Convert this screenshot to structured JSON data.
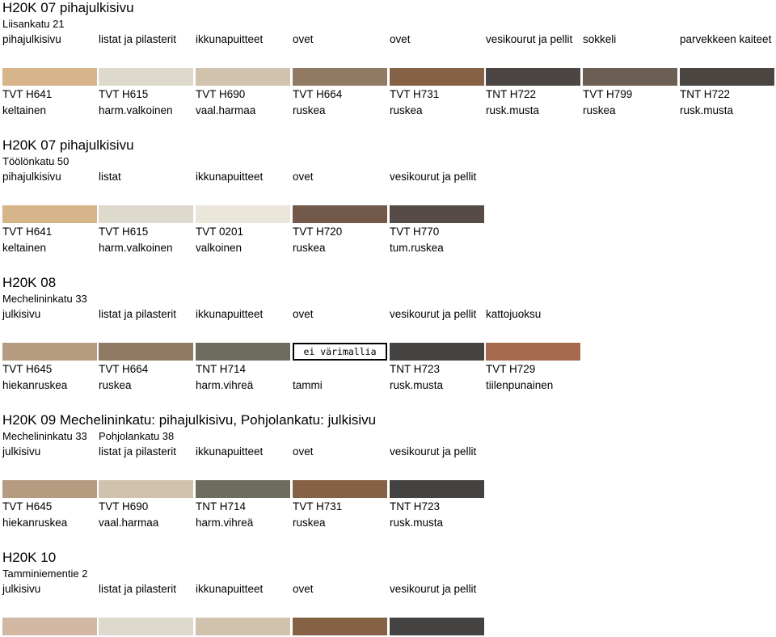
{
  "sections": [
    {
      "title": "H20K 07 pihajulkisivu",
      "street": "Liisankatu 21",
      "parts": [
        "pihajulkisivu",
        "listat ja pilasterit",
        "ikkunapuitteet",
        "ovet",
        "ovet",
        "vesikourut ja pellit",
        "sokkeli",
        "parvekkeen kaiteet"
      ],
      "swatches": [
        {
          "color": "#D6B58B",
          "code": "TVT H641",
          "name": "keltainen"
        },
        {
          "color": "#DDD9CD",
          "code": "TVT H615",
          "name": "harm.valkoinen"
        },
        {
          "color": "#D0C2AD",
          "code": "TVT H690",
          "name": "vaal.harmaa"
        },
        {
          "color": "#917A63",
          "code": "TVT H664",
          "name": "ruskea"
        },
        {
          "color": "#856246",
          "code": "TVT H731",
          "name": "ruskea"
        },
        {
          "color": "#4B4643",
          "code": "TNT H722",
          "name": "rusk.musta"
        },
        {
          "color": "#6B5E53",
          "code": "TVT H799",
          "name": "ruskea"
        },
        {
          "color": "#4A4541",
          "code": "TNT H722",
          "name": "rusk.musta"
        }
      ]
    },
    {
      "title": "H20K 07 pihajulkisivu",
      "street": "Töölönkatu 50",
      "parts": [
        "pihajulkisivu",
        "listat",
        "ikkunapuitteet",
        "ovet",
        "vesikourut ja pellit"
      ],
      "swatches": [
        {
          "color": "#D6B58B",
          "code": "TVT H641",
          "name": "keltainen"
        },
        {
          "color": "#DDD9CD",
          "code": "TVT H615",
          "name": "harm.valkoinen"
        },
        {
          "color": "#EAE6DA",
          "code": "TVT 0201",
          "name": "valkoinen"
        },
        {
          "color": "#72594A",
          "code": "TVT H720",
          "name": "ruskea"
        },
        {
          "color": "#564B46",
          "code": "TVT H770",
          "name": "tum.ruskea"
        }
      ]
    },
    {
      "title": "H20K 08",
      "street": "Mechelininkatu 33",
      "parts": [
        "julkisivu",
        "listat ja pilasterit",
        "ikkunapuitteet",
        "ovet",
        "vesikourut ja pellit",
        "kattojuoksu"
      ],
      "swatches": [
        {
          "color": "#B59B80",
          "code": "TVT H645",
          "name": "hiekanruskea"
        },
        {
          "color": "#917A63",
          "code": "TVT H664",
          "name": "ruskea"
        },
        {
          "color": "#6D6C5E",
          "code": "TNT H714",
          "name": "harm.vihreä"
        },
        {
          "color": "#FFFFFF",
          "code": "",
          "name": "tammi",
          "label": "ei värimallia"
        },
        {
          "color": "#454341",
          "code": "TNT H723",
          "name": "rusk.musta"
        },
        {
          "color": "#A66A4F",
          "code": "TVT H729",
          "name": "tiilenpunainen"
        }
      ]
    },
    {
      "title": "H20K 09 Mechelininkatu: pihajulkisivu, Pohjolankatu: julkisivu",
      "street": "Mechelininkatu 33",
      "street2": "Pohjolankatu 38",
      "parts": [
        "julkisivu",
        "listat ja pilasterit",
        "ikkunapuitteet",
        "ovet",
        "vesikourut ja pellit"
      ],
      "swatches": [
        {
          "color": "#B59B80",
          "code": "TVT H645",
          "name": "hiekanruskea"
        },
        {
          "color": "#D0C2AD",
          "code": "TVT H690",
          "name": "vaal.harmaa"
        },
        {
          "color": "#6D6C5E",
          "code": "TNT H714",
          "name": "harm.vihreä"
        },
        {
          "color": "#856246",
          "code": "TVT H731",
          "name": "ruskea"
        },
        {
          "color": "#454341",
          "code": "TNT H723",
          "name": "rusk.musta"
        }
      ]
    },
    {
      "title": "H20K 10",
      "street": "Tamminiementie 2",
      "parts": [
        "julkisivu",
        "listat ja pilasterit",
        "ikkunapuitteet",
        "ovet",
        "vesikourut ja pellit"
      ],
      "swatches": [
        {
          "color": "#D2B8A3",
          "code": "",
          "name": ""
        },
        {
          "color": "#DDD9CD",
          "code": "",
          "name": ""
        },
        {
          "color": "#D0C2AD",
          "code": "",
          "name": ""
        },
        {
          "color": "#856246",
          "code": "",
          "name": ""
        },
        {
          "color": "#454341",
          "code": "",
          "name": ""
        }
      ]
    }
  ]
}
